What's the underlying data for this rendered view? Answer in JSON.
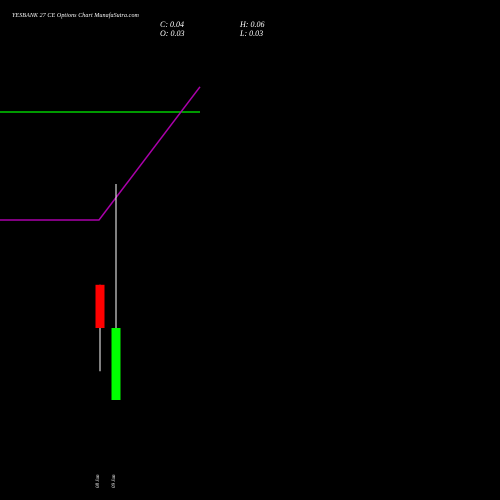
{
  "title": "YESBANK 27 CE Options  Chart MunafaSutra.com",
  "ohlc": {
    "close": "C: 0.04",
    "open": "O: 0.03",
    "high": "H: 0.06",
    "low": "L: 0.03"
  },
  "colors": {
    "background": "#000000",
    "text": "#ffffff",
    "up": "#00ff00",
    "down": "#ff0000",
    "wick": "#ffffff",
    "green_line": "#00cc00",
    "purple_line": "#aa00aa"
  },
  "chart_data": {
    "type": "candlestick",
    "title": "YESBANK 27 CE Options  Chart MunafaSutra.com",
    "xlabel": "",
    "ylabel": "",
    "ylim": [
      0.025,
      0.075
    ],
    "grid": false,
    "categories": [
      "08 Jan",
      "09 Jan"
    ],
    "candles": [
      {
        "date": "08 Jan",
        "open": 0.046,
        "high": 0.046,
        "low": 0.034,
        "close": 0.04,
        "direction": "down"
      },
      {
        "date": "09 Jan",
        "open": 0.03,
        "high": 0.06,
        "low": 0.03,
        "close": 0.04,
        "direction": "up"
      }
    ],
    "lines": [
      {
        "color": "green",
        "x": [
          0,
          40
        ],
        "y": [
          0.07,
          0.07
        ]
      },
      {
        "color": "purple",
        "x": [
          0,
          19.8,
          40
        ],
        "y": [
          0.055,
          0.055,
          0.0735
        ]
      }
    ]
  }
}
